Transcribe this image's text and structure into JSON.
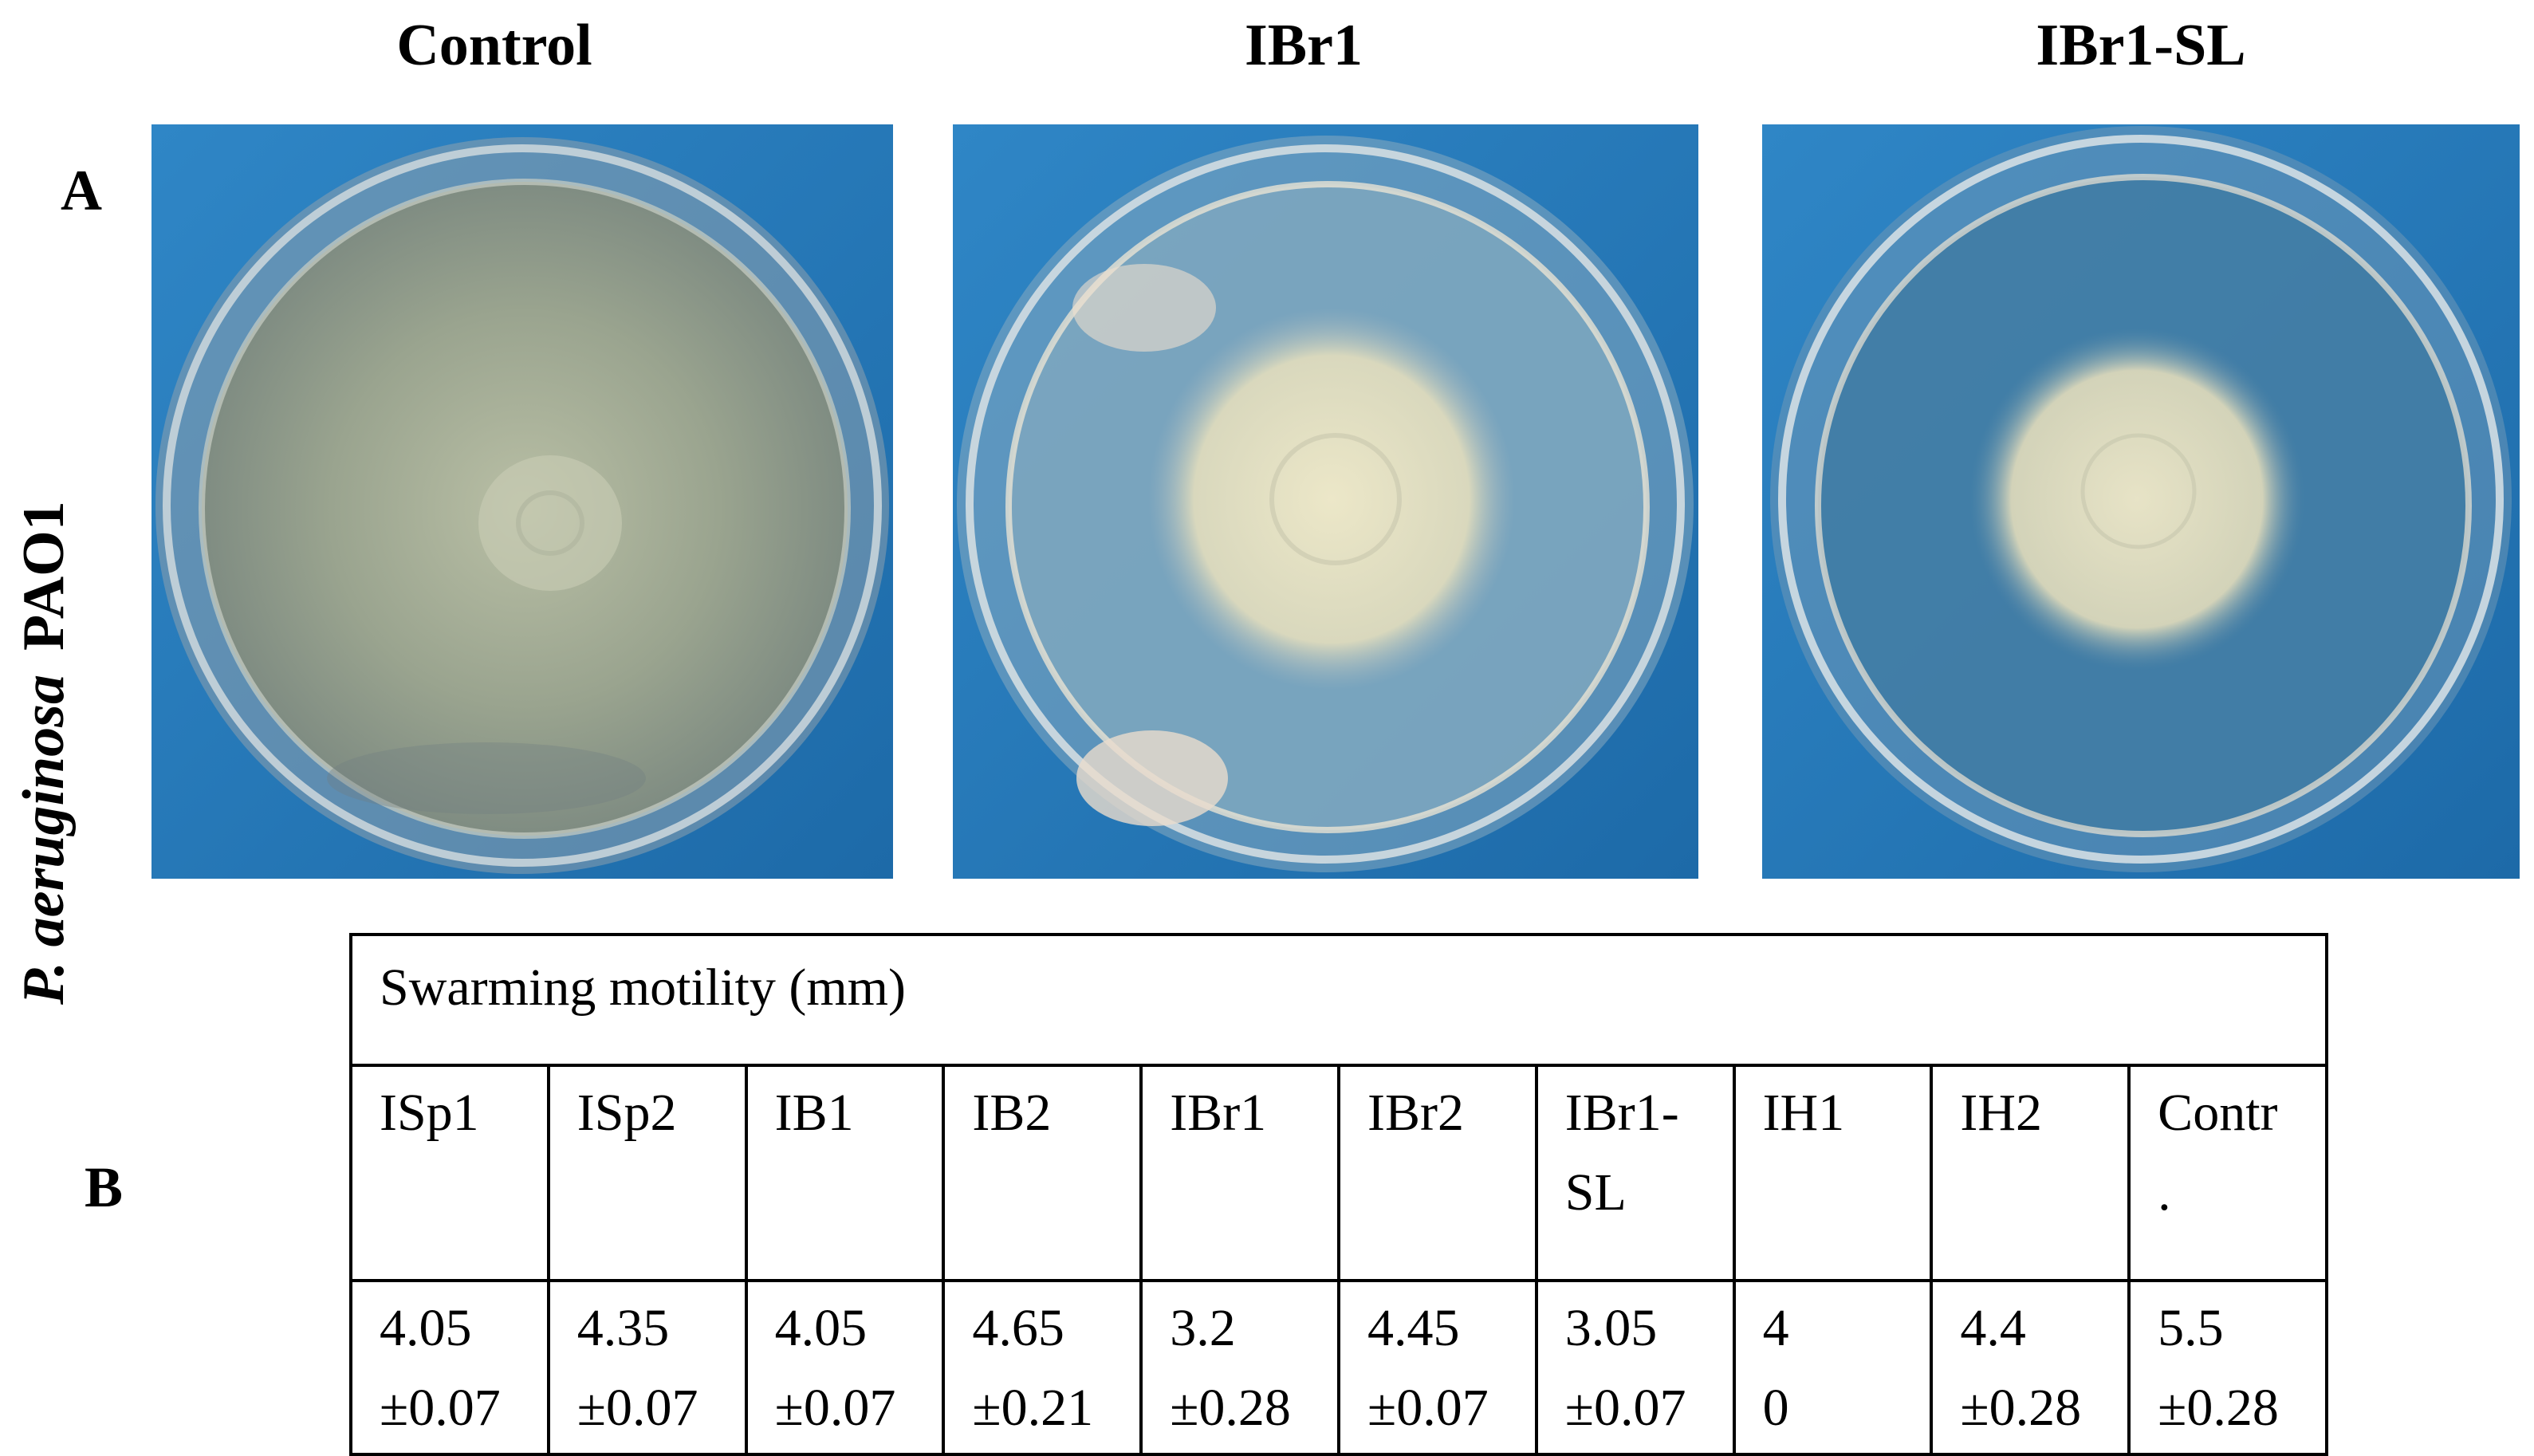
{
  "panel_a": {
    "letter": "A",
    "row_label": {
      "species": "P. aeruginosa",
      "strain": "PAO1"
    },
    "columns": [
      {
        "title": "Control"
      },
      {
        "title": "IBr1"
      },
      {
        "title": "IBr1-SL"
      }
    ]
  },
  "panel_b": {
    "letter": "B",
    "table_title": "Swarming motility (mm)",
    "samples": [
      {
        "name_line1": "ISp1",
        "name_line2": "",
        "mean": "4.05",
        "sd": "±0.07"
      },
      {
        "name_line1": "ISp2",
        "name_line2": "",
        "mean": "4.35",
        "sd": "±0.07"
      },
      {
        "name_line1": "IB1",
        "name_line2": "",
        "mean": "4.05",
        "sd": "±0.07"
      },
      {
        "name_line1": "IB2",
        "name_line2": "",
        "mean": "4.65",
        "sd": "±0.21"
      },
      {
        "name_line1": "IBr1",
        "name_line2": "",
        "mean": "3.2",
        "sd": "±0.28"
      },
      {
        "name_line1": "IBr2",
        "name_line2": "",
        "mean": "4.45",
        "sd": "±0.07"
      },
      {
        "name_line1": "IBr1-",
        "name_line2": "SL",
        "mean": "3.05",
        "sd": "±0.07"
      },
      {
        "name_line1": "IH1",
        "name_line2": "",
        "mean": "4",
        "sd": "0"
      },
      {
        "name_line1": "IH2",
        "name_line2": "",
        "mean": "4.4",
        "sd": "±0.28"
      },
      {
        "name_line1": "Contr",
        "name_line2": ".",
        "mean": "5.5",
        "sd": "±0.28"
      }
    ]
  }
}
